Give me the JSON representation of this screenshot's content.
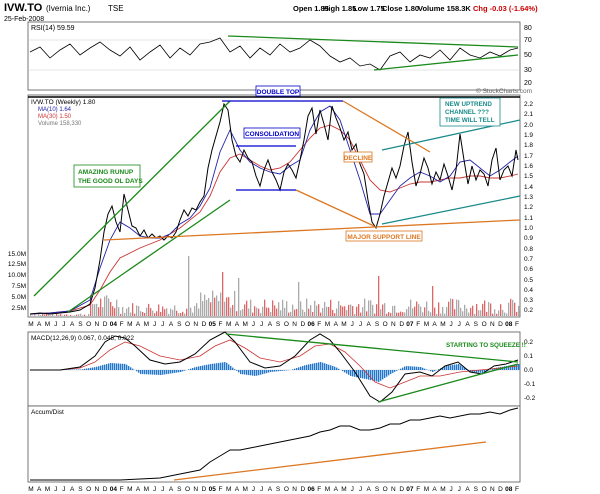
{
  "header": {
    "symbol": "IVW.TO",
    "company": "(Ivernia Inc.)",
    "exchange": "TSE",
    "date": "25-Feb-2008",
    "open": "Open 1.85",
    "high": "High 1.85",
    "low": "Low 1.75",
    "close": "Close 1.80",
    "volume": "Volume 158.3K",
    "change": "Chg -0.03 (-1.64%)",
    "change_color": "#cc0000",
    "copyright": "© StockCharts.com"
  },
  "colors": {
    "price": "#000000",
    "ma10": "#2222aa",
    "ma30": "#cc3333",
    "volume": "#aaaaaa",
    "volume_down": "#dd6666",
    "trend_green": "#1a8a1a",
    "trend_orange": "#dd7722",
    "trend_teal": "#1a8a8a",
    "trend_blue": "#0000cc",
    "macd_hist": "#2277cc",
    "annotation_text": "#1a6a1a"
  },
  "rsi": {
    "label": "RSI(14) 59.59",
    "ticks": [
      "80",
      "70",
      "50",
      "30",
      "20"
    ]
  },
  "price_legend": {
    "title": "IVW.TO (Weekly) 1.80",
    "ma10": "MA(10) 1.64",
    "ma30": "MA(30) 1.50",
    "volume": "Volume 158,330"
  },
  "price_ticks": [
    "2.2",
    "2.1",
    "2.0",
    "1.9",
    "1.8",
    "1.7",
    "1.6",
    "1.5",
    "1.4",
    "1.3",
    "1.2",
    "1.1",
    "1.0",
    "0.9",
    "0.8",
    "0.7",
    "0.6",
    "0.5",
    "0.4",
    "0.3",
    "0.2"
  ],
  "volume_ticks": [
    "15.0M",
    "12.5M",
    "10.0M",
    "7.5M",
    "5.0M",
    "2.5M"
  ],
  "macd": {
    "label": "MACD(12,26,9) 0.067, 0.045, 0.022",
    "ticks": [
      "0.2",
      "0.1",
      "0.0",
      "-0.1",
      "-0.2"
    ]
  },
  "accum": {
    "label": "Accum/Dist"
  },
  "month_axis": [
    "M",
    "A",
    "M",
    "J",
    "J",
    "A",
    "S",
    "O",
    "N",
    "D",
    "04",
    "F",
    "M",
    "A",
    "M",
    "J",
    "J",
    "A",
    "S",
    "O",
    "N",
    "D",
    "05",
    "F",
    "M",
    "A",
    "M",
    "J",
    "J",
    "A",
    "S",
    "O",
    "N",
    "D",
    "06",
    "F",
    "M",
    "A",
    "M",
    "J",
    "J",
    "A",
    "S",
    "O",
    "N",
    "D",
    "07",
    "F",
    "M",
    "A",
    "M",
    "J",
    "J",
    "A",
    "S",
    "O",
    "N",
    "D",
    "08",
    "F"
  ],
  "annotations": {
    "double_top": "DOUBLE TOP",
    "consolidation": "CONSOLIDATION",
    "runup_1": "AMAZING RUNUP",
    "runup_2": "THE GOOD OL DAYS",
    "decline": "DECLINE",
    "channel_1": "NEW UPTREND",
    "channel_2": "CHANNEL ???",
    "channel_3": "TIME WILL TELL",
    "support": "MAJOR SUPPORT LINE",
    "squeeze": "STARTING TO SQUEEZE !!"
  },
  "chart_data": {
    "type": "line",
    "frequency": "weekly",
    "period": [
      "2003-03",
      "2008-02"
    ],
    "price": {
      "ylim": [
        0.2,
        2.2
      ],
      "last": 1.8,
      "key_points": [
        {
          "date": "2003-03",
          "value": 0.3
        },
        {
          "date": "2003-09",
          "value": 0.4
        },
        {
          "date": "2003-12",
          "value": 1.0
        },
        {
          "date": "2004-01",
          "value": 1.3
        },
        {
          "date": "2004-06",
          "value": 0.95
        },
        {
          "date": "2004-09",
          "value": 1.0
        },
        {
          "date": "2004-12",
          "value": 1.45
        },
        {
          "date": "2005-03",
          "value": 2.25
        },
        {
          "date": "2005-05",
          "value": 1.55
        },
        {
          "date": "2005-08",
          "value": 1.75
        },
        {
          "date": "2005-10",
          "value": 1.4
        },
        {
          "date": "2006-01",
          "value": 2.25
        },
        {
          "date": "2006-05",
          "value": 2.25
        },
        {
          "date": "2006-08",
          "value": 1.5
        },
        {
          "date": "2006-10",
          "value": 1.0
        },
        {
          "date": "2007-01",
          "value": 1.75
        },
        {
          "date": "2007-03",
          "value": 1.4
        },
        {
          "date": "2007-07",
          "value": 2.0
        },
        {
          "date": "2007-11",
          "value": 1.45
        },
        {
          "date": "2008-02",
          "value": 1.8
        }
      ],
      "ma10_last": 1.64,
      "ma30_last": 1.5
    },
    "rsi": {
      "ylim": [
        20,
        80
      ],
      "last": 59.59
    },
    "volume": {
      "ylim": [
        0,
        15000000
      ],
      "last": 158330
    },
    "macd": {
      "ylim": [
        -0.2,
        0.2
      ],
      "macd": 0.067,
      "signal": 0.045,
      "histogram": 0.022
    }
  }
}
